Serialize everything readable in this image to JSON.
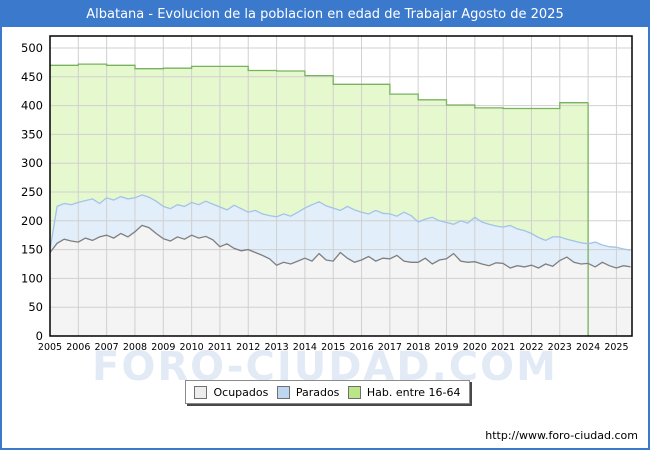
{
  "title_bar": {
    "text": "Albatana - Evolucion de la poblacion en edad de Trabajar Agosto de 2025",
    "bg_color": "#3b79cc"
  },
  "watermark": "FORO-CIUDAD.COM",
  "footer": {
    "url": "http://www.foro-ciudad.com"
  },
  "legend": [
    {
      "label": "Ocupados",
      "swatch": "#ededed"
    },
    {
      "label": "Parados",
      "swatch": "#bdd7f0"
    },
    {
      "label": "Hab. entre 16-64",
      "swatch": "#b9e687"
    }
  ],
  "chart_data": {
    "type": "area",
    "title": "Albatana - Evolucion de la poblacion en edad de Trabajar Agosto de 2025",
    "xlabel": "",
    "ylabel": "",
    "ylim": [
      0,
      500
    ],
    "y_ticks": [
      0,
      50,
      100,
      150,
      200,
      250,
      300,
      350,
      400,
      450,
      500
    ],
    "x_ticks": [
      2005,
      2006,
      2007,
      2008,
      2009,
      2010,
      2011,
      2012,
      2013,
      2014,
      2015,
      2016,
      2017,
      2018,
      2019,
      2020,
      2021,
      2022,
      2023,
      2024,
      2025
    ],
    "x_domain": [
      2005,
      2025.55
    ],
    "grid": true,
    "legend_position": "bottom",
    "layering": "overlapping areas, drawn back-to-front: Hab. entre 16-64, Parados, Ocupados",
    "grid_color": "#d0d0d0",
    "series": [
      {
        "name": "Hab. entre 16-64",
        "mode": "step",
        "x_start": 2005,
        "x_step": 1,
        "x_end": 2024,
        "fill": "#e6f8cd",
        "line": "#79b25e",
        "values": [
          470,
          472,
          470,
          464,
          465,
          468,
          468,
          461,
          460,
          452,
          437,
          437,
          420,
          410,
          401,
          396,
          395,
          395,
          405
        ]
      },
      {
        "name": "Parados",
        "mode": "line",
        "x_start": 2005,
        "x_step": 0.25,
        "fill": "#e2eef9",
        "line": "#a3c3e8",
        "values": [
          150,
          225,
          230,
          228,
          232,
          235,
          238,
          230,
          240,
          236,
          242,
          238,
          240,
          245,
          241,
          234,
          225,
          221,
          228,
          225,
          232,
          228,
          234,
          229,
          224,
          219,
          227,
          221,
          215,
          218,
          212,
          209,
          207,
          212,
          208,
          215,
          222,
          228,
          233,
          226,
          222,
          218,
          225,
          219,
          215,
          212,
          218,
          213,
          212,
          208,
          215,
          209,
          198,
          203,
          206,
          200,
          197,
          194,
          200,
          196,
          206,
          198,
          194,
          191,
          189,
          192,
          186,
          183,
          178,
          171,
          166,
          172,
          172,
          168,
          165,
          162,
          160,
          163,
          158,
          155,
          154,
          151,
          149
        ]
      },
      {
        "name": "Ocupados",
        "mode": "line",
        "x_start": 2005,
        "x_step": 0.25,
        "fill": "#f4f4f4",
        "line": "#7f7f7f",
        "values": [
          145,
          161,
          168,
          165,
          163,
          170,
          166,
          172,
          175,
          170,
          178,
          172,
          181,
          192,
          188,
          178,
          169,
          165,
          172,
          168,
          175,
          170,
          173,
          167,
          155,
          160,
          152,
          148,
          150,
          145,
          140,
          134,
          123,
          128,
          125,
          130,
          135,
          130,
          143,
          132,
          130,
          145,
          135,
          128,
          132,
          138,
          130,
          135,
          134,
          140,
          130,
          128,
          128,
          135,
          125,
          132,
          134,
          143,
          130,
          128,
          129,
          125,
          122,
          127,
          126,
          118,
          122,
          120,
          123,
          118,
          125,
          121,
          131,
          137,
          128,
          125,
          126,
          120,
          128,
          122,
          118,
          122,
          120
        ]
      }
    ]
  }
}
